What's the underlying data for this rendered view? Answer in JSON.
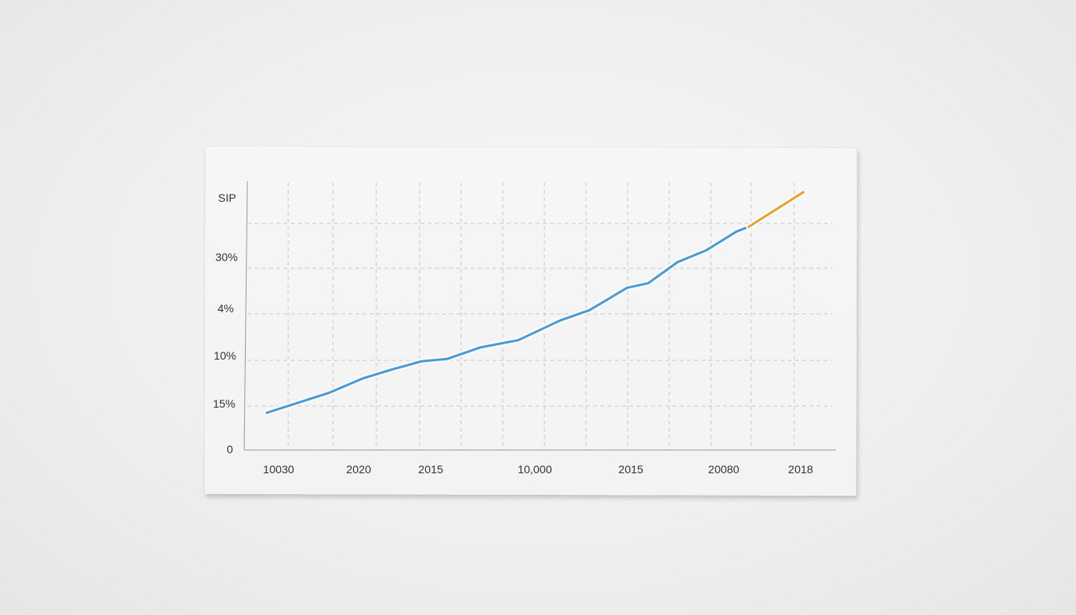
{
  "chart_data": {
    "type": "line",
    "title": "",
    "xlabel": "",
    "ylabel": "",
    "y_tick_labels": [
      "SIP",
      "30%",
      "4%",
      "10%",
      "15%",
      "0"
    ],
    "x_tick_labels": [
      "10030",
      "2020",
      "2015",
      "10,000",
      "2015",
      "20080",
      "2018"
    ],
    "grid": true,
    "ylim": [
      0,
      6
    ],
    "xlim": [
      0,
      14
    ],
    "series": [
      {
        "color": "#4a9ad4",
        "x": [
          0.5,
          1.5,
          2.0,
          2.8,
          3.5,
          4.2,
          4.8,
          5.6,
          6.5,
          7.5,
          8.2,
          9.1,
          9.6,
          10.3,
          11.0,
          11.7,
          12.0
        ],
        "y": [
          0.83,
          1.13,
          1.28,
          1.6,
          1.8,
          1.98,
          2.03,
          2.29,
          2.45,
          2.89,
          3.12,
          3.62,
          3.72,
          4.19,
          4.46,
          4.87,
          4.98
        ]
      },
      {
        "color": "#e8a030",
        "x": [
          12.0,
          13.3
        ],
        "y": [
          4.98,
          5.75
        ]
      }
    ]
  }
}
